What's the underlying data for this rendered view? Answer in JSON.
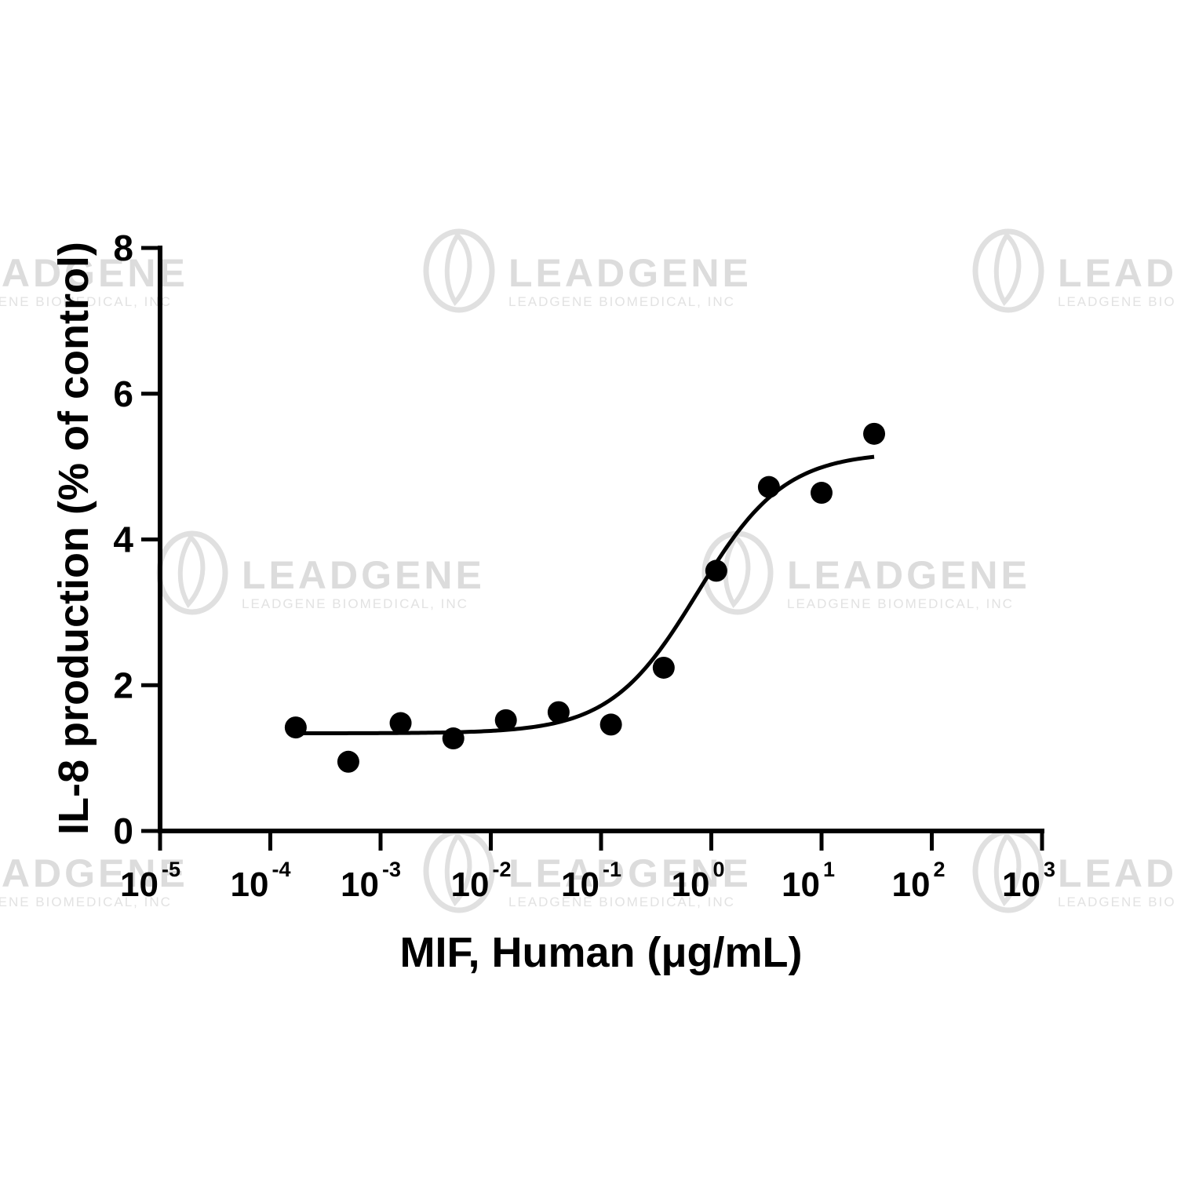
{
  "watermark": {
    "brand": "LEADGENE",
    "subtext": "LEADGENE BIOMEDICAL, INC"
  },
  "chart_data": {
    "type": "scatter",
    "title": "",
    "xlabel": "MIF, Human (μg/mL)",
    "ylabel": "IL-8 production (% of control)",
    "xscale": "log",
    "xlim": [
      1e-05,
      1000
    ],
    "ylim": [
      0,
      8
    ],
    "x_ticks": [
      {
        "base": "10",
        "exp": "-5",
        "value": 1e-05
      },
      {
        "base": "10",
        "exp": "-4",
        "value": 0.0001
      },
      {
        "base": "10",
        "exp": "-3",
        "value": 0.001
      },
      {
        "base": "10",
        "exp": "-2",
        "value": 0.01
      },
      {
        "base": "10",
        "exp": "-1",
        "value": 0.1
      },
      {
        "base": "10",
        "exp": "0",
        "value": 1
      },
      {
        "base": "10",
        "exp": "1",
        "value": 10
      },
      {
        "base": "10",
        "exp": "2",
        "value": 100
      },
      {
        "base": "10",
        "exp": "3",
        "value": 1000
      }
    ],
    "y_ticks": [
      0,
      2,
      4,
      6,
      8
    ],
    "grid": false,
    "legend": "none",
    "series": [
      {
        "kind": "points",
        "color": "#000000",
        "points": [
          {
            "x": 0.00017,
            "y": 1.42
          },
          {
            "x": 0.00051,
            "y": 0.95
          },
          {
            "x": 0.00152,
            "y": 1.48
          },
          {
            "x": 0.00457,
            "y": 1.27
          },
          {
            "x": 0.0137,
            "y": 1.52
          },
          {
            "x": 0.0412,
            "y": 1.63
          },
          {
            "x": 0.123,
            "y": 1.46
          },
          {
            "x": 0.37,
            "y": 2.24
          },
          {
            "x": 1.11,
            "y": 3.57
          },
          {
            "x": 3.33,
            "y": 4.72
          },
          {
            "x": 10.0,
            "y": 4.64
          },
          {
            "x": 30.0,
            "y": 5.45
          }
        ]
      },
      {
        "kind": "fit",
        "model": "four-parameter logistic",
        "color": "#000000",
        "bottom": 1.34,
        "top": 5.2,
        "ec50": 0.75,
        "hill": 1.1,
        "x_range": [
          0.00017,
          30.0
        ]
      }
    ]
  }
}
